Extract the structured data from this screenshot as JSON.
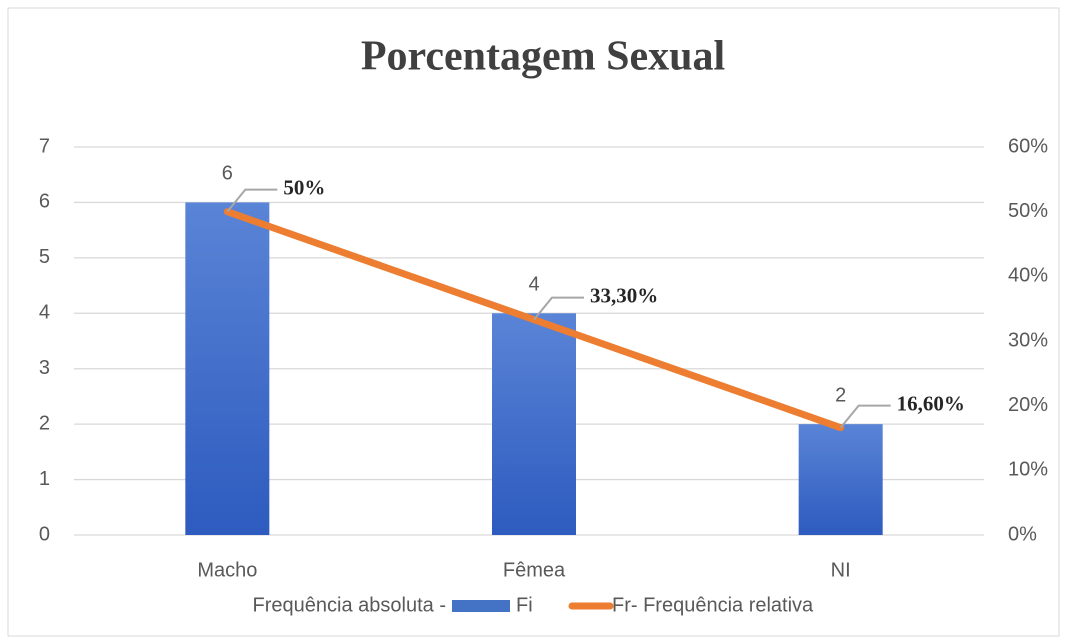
{
  "chart_data": {
    "type": "bar",
    "title": "Porcentagem Sexual",
    "categories": [
      "Macho",
      "Fêmea",
      "NI"
    ],
    "series": [
      {
        "name": "Fi",
        "type": "bar",
        "color": "#4472c4",
        "values": [
          6,
          4,
          2
        ]
      },
      {
        "name": "Fr- Frequência relativa",
        "type": "line",
        "axis": "y2",
        "color": "#ed7d31",
        "values": [
          50,
          33.3,
          16.6
        ],
        "value_labels": [
          "50%",
          "33,30%",
          "16,60%"
        ]
      }
    ],
    "legend_prefix": "Frequência absoluta -",
    "ylim": [
      0,
      7
    ],
    "yticks": [
      0,
      1,
      2,
      3,
      4,
      5,
      6,
      7
    ],
    "y2lim": [
      0,
      60
    ],
    "y2ticks": [
      {
        "value": 0,
        "label": "0%"
      },
      {
        "value": 10,
        "label": "10%"
      },
      {
        "value": 20,
        "label": "20%"
      },
      {
        "value": 30,
        "label": "30%"
      },
      {
        "value": 40,
        "label": "40%"
      },
      {
        "value": 50,
        "label": "50%"
      },
      {
        "value": 60,
        "label": "60%"
      }
    ],
    "grid": true,
    "legend": "bottom"
  }
}
